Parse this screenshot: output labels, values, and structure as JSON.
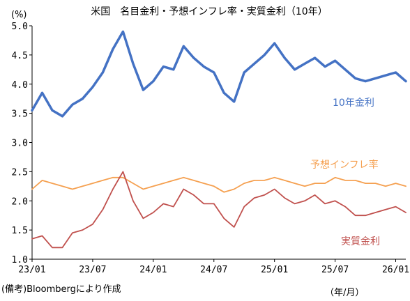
{
  "chart_title": "米国　名目金利・予想インフレ率・実質金利（10年）",
  "y_unit": "(%)",
  "x_unit": "（年/月）",
  "source_note": "(備考)Bloombergにより作成",
  "chart_data": {
    "type": "line",
    "title": "米国　名目金利・予想インフレ率・実質金利（10年）",
    "ylim": [
      1.0,
      5.0
    ],
    "y_ticks": [
      "1.0",
      "1.5",
      "2.0",
      "2.5",
      "3.0",
      "3.5",
      "4.0",
      "4.5",
      "5.0"
    ],
    "x_ticks": [
      "23/01",
      "23/07",
      "24/01",
      "24/07",
      "25/01",
      "25/07",
      "26/01"
    ],
    "x_range": [
      "2023-01",
      "2026-02"
    ],
    "grid": false,
    "series": [
      {
        "name": "10年金利",
        "color": "#4472c4",
        "x": [
          "2023-01",
          "2023-02",
          "2023-03",
          "2023-04",
          "2023-05",
          "2023-06",
          "2023-07",
          "2023-08",
          "2023-09",
          "2023-10",
          "2023-11",
          "2023-12",
          "2024-01",
          "2024-02",
          "2024-03",
          "2024-04",
          "2024-05",
          "2024-06",
          "2024-07",
          "2024-08",
          "2024-09",
          "2024-10",
          "2024-11",
          "2024-12",
          "2025-01",
          "2025-02",
          "2025-03",
          "2025-04",
          "2025-05",
          "2025-06",
          "2025-07",
          "2025-08",
          "2025-09",
          "2025-10",
          "2025-11",
          "2025-12",
          "2026-01",
          "2026-02"
        ],
        "values": [
          3.55,
          3.85,
          3.55,
          3.45,
          3.65,
          3.75,
          3.95,
          4.2,
          4.6,
          4.9,
          4.35,
          3.9,
          4.05,
          4.3,
          4.25,
          4.65,
          4.45,
          4.3,
          4.2,
          3.85,
          3.7,
          4.2,
          4.35,
          4.5,
          4.7,
          4.45,
          4.25,
          4.35,
          4.45,
          4.3,
          4.4,
          4.25,
          4.1,
          4.05,
          4.1,
          4.15,
          4.2,
          4.05
        ]
      },
      {
        "name": "予想インフレ率",
        "color": "#f5a050",
        "x": [
          "2023-01",
          "2023-02",
          "2023-03",
          "2023-04",
          "2023-05",
          "2023-06",
          "2023-07",
          "2023-08",
          "2023-09",
          "2023-10",
          "2023-11",
          "2023-12",
          "2024-01",
          "2024-02",
          "2024-03",
          "2024-04",
          "2024-05",
          "2024-06",
          "2024-07",
          "2024-08",
          "2024-09",
          "2024-10",
          "2024-11",
          "2024-12",
          "2025-01",
          "2025-02",
          "2025-03",
          "2025-04",
          "2025-05",
          "2025-06",
          "2025-07",
          "2025-08",
          "2025-09",
          "2025-10",
          "2025-11",
          "2025-12",
          "2026-01",
          "2026-02"
        ],
        "values": [
          2.2,
          2.35,
          2.3,
          2.25,
          2.2,
          2.25,
          2.3,
          2.35,
          2.4,
          2.4,
          2.3,
          2.2,
          2.25,
          2.3,
          2.35,
          2.4,
          2.35,
          2.3,
          2.25,
          2.15,
          2.2,
          2.3,
          2.35,
          2.35,
          2.4,
          2.35,
          2.3,
          2.25,
          2.3,
          2.3,
          2.4,
          2.35,
          2.35,
          2.3,
          2.3,
          2.25,
          2.3,
          2.25
        ]
      },
      {
        "name": "実質金利",
        "color": "#c0504d",
        "x": [
          "2023-01",
          "2023-02",
          "2023-03",
          "2023-04",
          "2023-05",
          "2023-06",
          "2023-07",
          "2023-08",
          "2023-09",
          "2023-10",
          "2023-11",
          "2023-12",
          "2024-01",
          "2024-02",
          "2024-03",
          "2024-04",
          "2024-05",
          "2024-06",
          "2024-07",
          "2024-08",
          "2024-09",
          "2024-10",
          "2024-11",
          "2024-12",
          "2025-01",
          "2025-02",
          "2025-03",
          "2025-04",
          "2025-05",
          "2025-06",
          "2025-07",
          "2025-08",
          "2025-09",
          "2025-10",
          "2025-11",
          "2025-12",
          "2026-01",
          "2026-02"
        ],
        "values": [
          1.35,
          1.4,
          1.2,
          1.2,
          1.45,
          1.5,
          1.6,
          1.85,
          2.2,
          2.5,
          2.0,
          1.7,
          1.8,
          1.95,
          1.9,
          2.2,
          2.1,
          1.95,
          1.95,
          1.7,
          1.55,
          1.9,
          2.05,
          2.1,
          2.2,
          2.05,
          1.95,
          2.0,
          2.1,
          1.95,
          2.0,
          1.9,
          1.75,
          1.75,
          1.8,
          1.85,
          1.9,
          1.8
        ]
      }
    ]
  }
}
